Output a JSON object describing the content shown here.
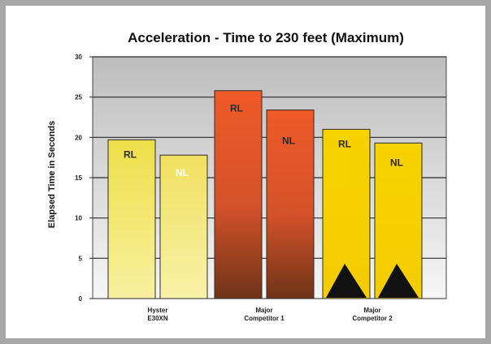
{
  "chart_data": {
    "type": "bar",
    "title": "Acceleration - Time to 230 feet (Maximum)",
    "xlabel": "",
    "ylabel": "Elapsed Time in Seconds",
    "ylim": [
      0,
      30
    ],
    "yticks": [
      "0",
      "5",
      "10",
      "15",
      "20",
      "25",
      "30"
    ],
    "grid": true,
    "legend": "none",
    "categories": [
      [
        "Hyster",
        "E30XN"
      ],
      [
        "Major",
        "Competitor 1"
      ],
      [
        "Major",
        "Competitor 2"
      ]
    ],
    "series": [
      {
        "name": "RL",
        "values": [
          19.7,
          25.8,
          21.0
        ]
      },
      {
        "name": "NL",
        "values": [
          17.8,
          23.4,
          19.3
        ]
      }
    ],
    "bar_labels": [
      [
        "RL",
        "NL"
      ],
      [
        "RL",
        "NL"
      ],
      [
        "RL",
        "NL"
      ]
    ],
    "colors": {
      "group1": "#eee04a",
      "group2": "#e8582a",
      "group3": "#f5d000",
      "plot_background": "#cfcfcf",
      "frame_background": "#a7a7a7"
    }
  }
}
